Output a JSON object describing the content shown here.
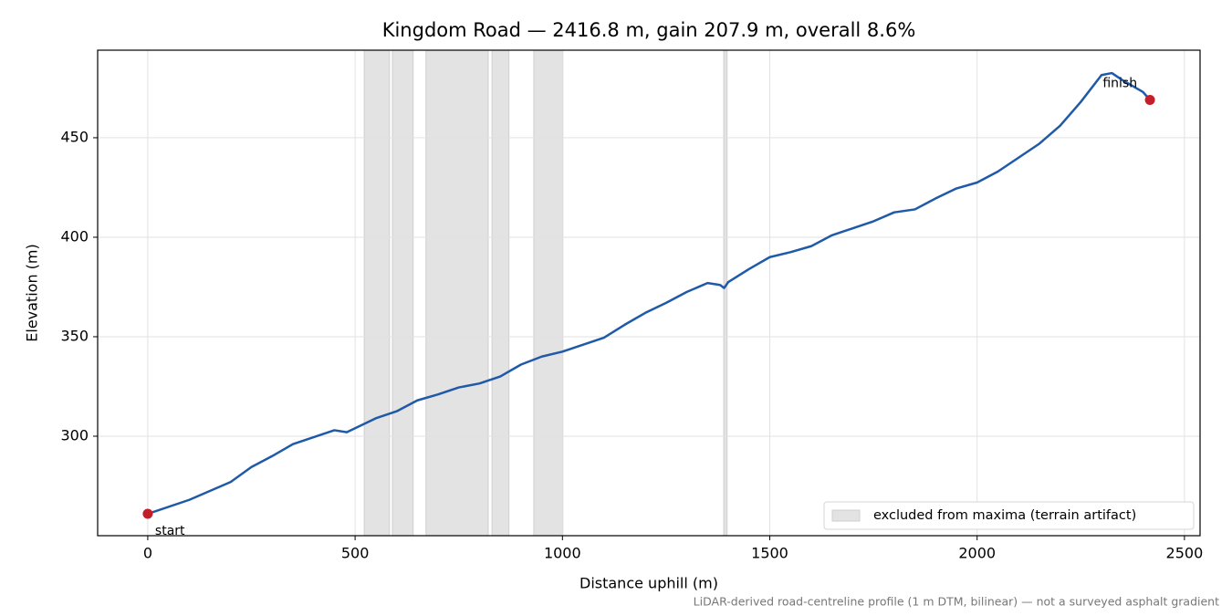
{
  "chart_data": {
    "type": "line",
    "title": "Kingdom Road — 2416.8 m, gain 207.9 m, overall 8.6%",
    "x_label": "Distance uphill (m)",
    "y_label": "Elevation (m)",
    "footnote": "LiDAR-derived road-centreline profile (1 m DTM, bilinear) — not a surveyed asphalt gradient",
    "xlim": [
      -120.84,
      2537.64
    ],
    "ylim": [
      250,
      494
    ],
    "xticks": [
      0,
      500,
      1000,
      1500,
      2000,
      2500
    ],
    "yticks": [
      300,
      350,
      400,
      450
    ],
    "grid": true,
    "x": [
      0,
      100,
      200,
      250,
      300,
      350,
      400,
      450,
      480,
      500,
      550,
      600,
      650,
      700,
      750,
      800,
      850,
      900,
      950,
      1000,
      1050,
      1100,
      1150,
      1200,
      1250,
      1300,
      1350,
      1380,
      1390,
      1400,
      1450,
      1500,
      1550,
      1600,
      1650,
      1700,
      1750,
      1800,
      1850,
      1900,
      1950,
      2000,
      2050,
      2100,
      2150,
      2200,
      2250,
      2300,
      2325,
      2350,
      2400,
      2416.8
    ],
    "series": [
      {
        "name": "elevation",
        "color": "#1f5aa8",
        "values": [
          261,
          268,
          277,
          284.5,
          290,
          296,
          299.5,
          303,
          302,
          304,
          309,
          312.5,
          318,
          321,
          324.5,
          326.5,
          330,
          336,
          340,
          342.5,
          346,
          349.5,
          356,
          362,
          367,
          372.5,
          377,
          376,
          374.5,
          377.5,
          384,
          390,
          392.5,
          395.5,
          401,
          404.5,
          408,
          412.5,
          414,
          419.5,
          424.5,
          427.5,
          433,
          440,
          447,
          456,
          468,
          481.5,
          482.5,
          479,
          473,
          469
        ]
      }
    ],
    "markers": [
      {
        "label": "start",
        "x": 0,
        "y": 261
      },
      {
        "label": "finish",
        "x": 2416.8,
        "y": 469
      }
    ],
    "marker_color": "#c41e2a",
    "excluded": [
      [
        522,
        583
      ],
      [
        590,
        640
      ],
      [
        671,
        821
      ],
      [
        830,
        871
      ],
      [
        931,
        1001
      ],
      [
        1389,
        1397
      ]
    ],
    "excluded_color": "#e3e3e3",
    "excluded_label": "excluded from maxima (terrain artifact)",
    "legend_position": "lower right"
  }
}
